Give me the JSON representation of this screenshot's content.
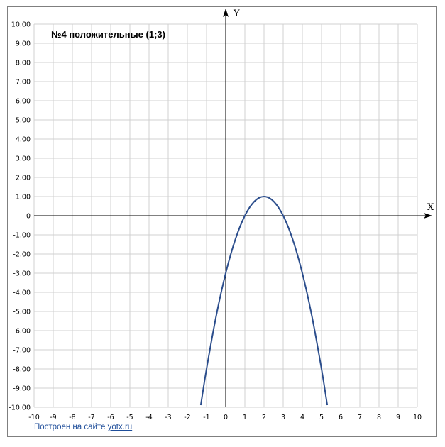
{
  "chart_data": {
    "type": "line",
    "title": "№4  положительные (1;3)",
    "xlabel": "X",
    "ylabel": "Y",
    "xlim": [
      -10,
      10
    ],
    "ylim": [
      -10,
      10
    ],
    "grid": true,
    "x_tick_labels": [
      "-10",
      "-9",
      "-8",
      "-7",
      "-6",
      "-5",
      "-4",
      "-3",
      "-2",
      "-1",
      "0",
      "1",
      "2",
      "3",
      "4",
      "5",
      "6",
      "7",
      "8",
      "9",
      "10"
    ],
    "y_tick_labels": [
      "10.00",
      "9.00",
      "8.00",
      "7.00",
      "6.00",
      "5.00",
      "4.00",
      "3.00",
      "2.00",
      "1.00",
      "0",
      "-1.00",
      "-2.00",
      "-3.00",
      "-4.00",
      "-5.00",
      "-6.00",
      "-7.00",
      "-8.00",
      "-9.00",
      "-10.00"
    ],
    "series": [
      {
        "color": "#2b4d8c",
        "x": [
          -1.3,
          -1.0,
          -0.5,
          0,
          0.5,
          1.0,
          1.5,
          2.0,
          2.5,
          3.0,
          3.5,
          4.0,
          4.5,
          5.0,
          5.3
        ],
        "y": [
          -9.89,
          -8.0,
          -5.25,
          -3.0,
          -1.25,
          0.0,
          0.75,
          1.0,
          0.75,
          0.0,
          -1.25,
          -3.0,
          -5.25,
          -8.0,
          -9.89
        ]
      }
    ]
  },
  "footer": {
    "credit_text": "Построен на сайте ",
    "credit_link": "yotx.ru"
  }
}
